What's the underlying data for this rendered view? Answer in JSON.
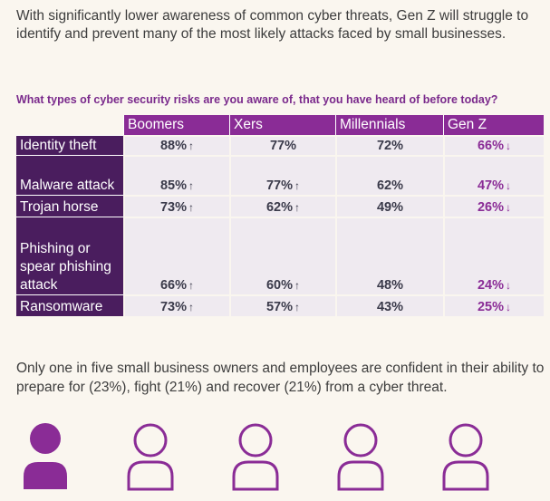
{
  "intro": "With significantly lower awareness of common cyber threats, Gen Z will struggle to identify and prevent many of the most likely attacks faced by small businesses.",
  "question": "What types of cyber security risks are you aware of, that you have heard of before today?",
  "table": {
    "headers": [
      "Boomers",
      "Xers",
      "Millennials",
      "Gen Z"
    ],
    "rows": [
      {
        "label": "Identity theft",
        "values": [
          "88%",
          "77%",
          "72%",
          "66%"
        ],
        "arrows": [
          "up",
          "",
          "",
          "down"
        ]
      },
      {
        "label": "Malware attack",
        "values": [
          "85%",
          "77%",
          "62%",
          "47%"
        ],
        "arrows": [
          "up",
          "up",
          "",
          "down"
        ]
      },
      {
        "label": "Trojan horse",
        "values": [
          "73%",
          "62%",
          "49%",
          "26%"
        ],
        "arrows": [
          "up",
          "up",
          "",
          "down"
        ]
      },
      {
        "label": "Phishing or spear phishing attack",
        "values": [
          "66%",
          "60%",
          "48%",
          "24%"
        ],
        "arrows": [
          "up",
          "up",
          "",
          "down"
        ]
      },
      {
        "label": "Ransomware",
        "values": [
          "73%",
          "57%",
          "43%",
          "25%"
        ],
        "arrows": [
          "up",
          "up",
          "",
          "down"
        ]
      }
    ]
  },
  "outro": "Only one in five small business owners and employees are confident in their ability to prepare for (23%), fight  (21%) and recover (21%) from a cyber threat.",
  "people": {
    "count": 5,
    "filled": 1,
    "fill_color": "#8a2c96",
    "outline_color": "#8a2c96",
    "icon": "person-icon"
  },
  "colors": {
    "header_purple": "#8a2c96",
    "row_label_purple": "#4a1d5e",
    "cell_background": "#efeaf0",
    "page_background": "#faf6ef",
    "question_color": "#7a2a8c"
  }
}
